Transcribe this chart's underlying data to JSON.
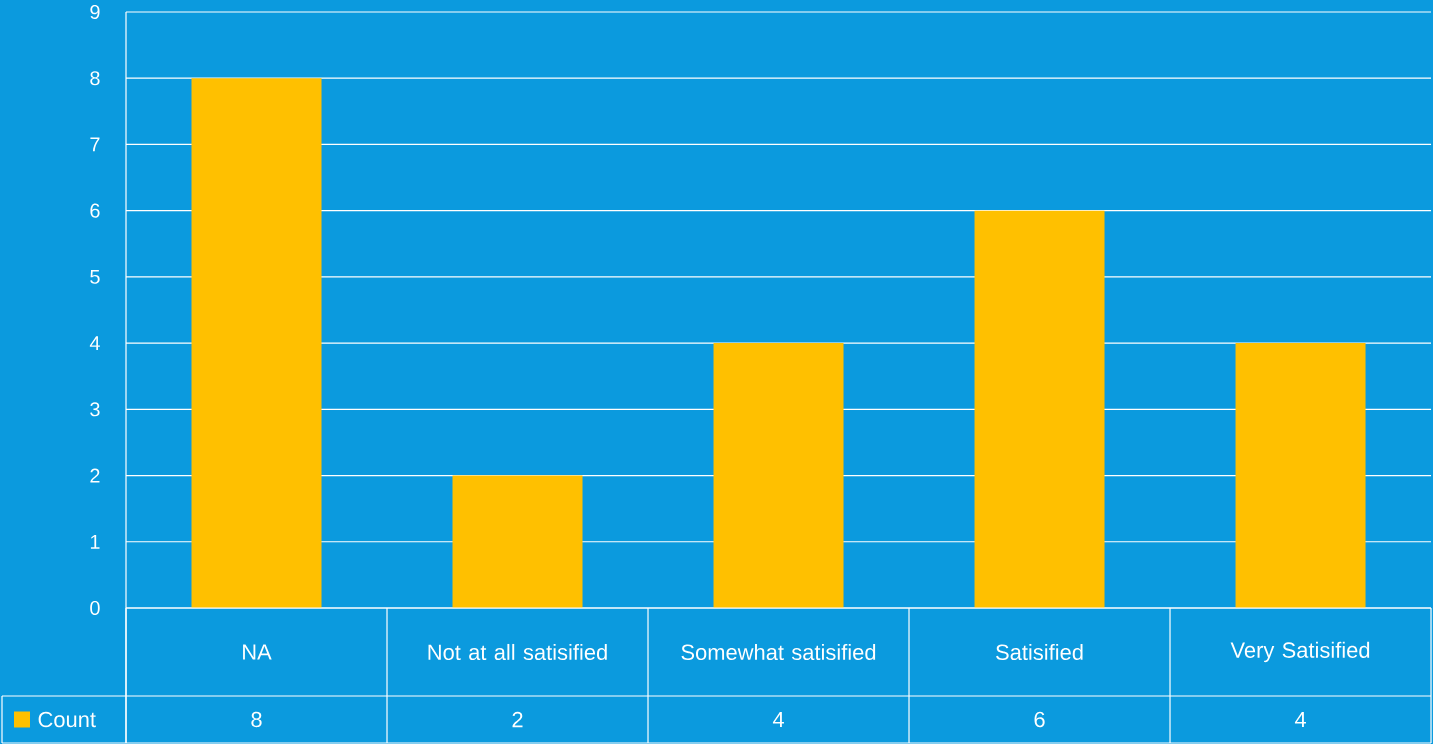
{
  "chart_data": {
    "type": "bar",
    "categories": [
      "NA",
      "Not at all satisified",
      "Somewhat satisified",
      "Satisified",
      "Very Satisified"
    ],
    "series": [
      {
        "name": "Count",
        "color": "#ffc000",
        "values": [
          8,
          2,
          4,
          6,
          4
        ]
      }
    ],
    "ylim": [
      0,
      9
    ],
    "yticks": [
      0,
      1,
      2,
      3,
      4,
      5,
      6,
      7,
      8,
      9
    ],
    "grid": "y",
    "legend": "bottom left",
    "data_labels": true
  }
}
